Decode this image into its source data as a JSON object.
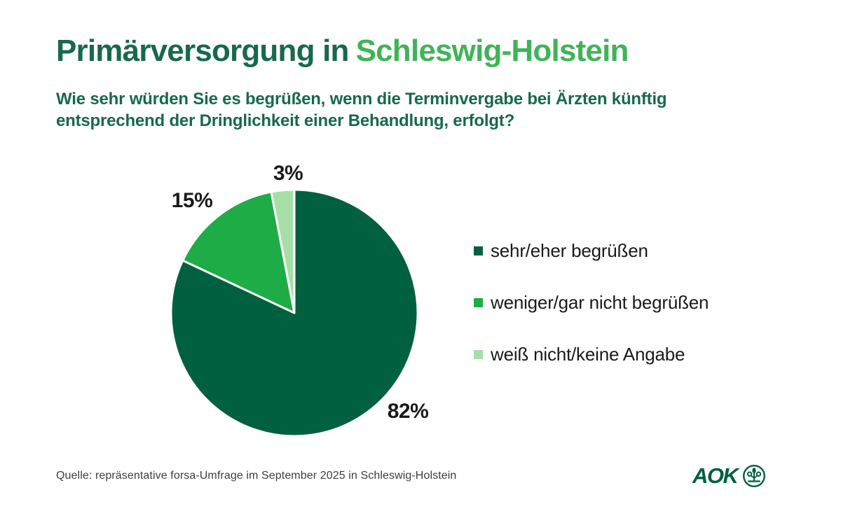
{
  "header": {
    "title_prefix": "Primärversorgung in",
    "title_accent": "Schleswig-Holstein",
    "subtitle_line1": "Wie sehr würden Sie es begrüßen, wenn die Terminvergabe bei Ärzten künftig",
    "subtitle_line2": "entsprechend der Dringlichkeit einer Behandlung, erfolgt?"
  },
  "chart_data": {
    "type": "pie",
    "title": "Primärversorgung in Schleswig-Holstein",
    "question": "Wie sehr würden Sie es begrüßen, wenn die Terminvergabe bei Ärzten künftig entsprechend der Dringlichkeit einer Behandlung, erfolgt?",
    "unit": "percent",
    "start_angle_deg": 0,
    "direction": "clockwise",
    "legend_position": "right",
    "slice_separator_color": "#FFFFFF",
    "slices": [
      {
        "label": "sehr/eher begrüßen",
        "value": 82,
        "display": "82%",
        "color": "#00603F"
      },
      {
        "label": "weniger/gar nicht begrüßen",
        "value": 15,
        "display": "15%",
        "color": "#1EAC46"
      },
      {
        "label": "weiß nicht/keine Angabe",
        "value": 3,
        "display": "3%",
        "color": "#A6DFA6"
      }
    ]
  },
  "footer": {
    "source": "Quelle: repräsentative forsa-Umfrage im September 2025 in Schleswig-Holstein",
    "logo_text": "AOK",
    "logo_emblem": "aok-tree-of-life-icon"
  },
  "colors": {
    "background": "#FFFFFF",
    "title_primary": "#17694B",
    "title_accent": "#3FB457",
    "label_text": "#1A1A1A",
    "source_text": "#3D3D3D",
    "logo_green": "#00603F"
  }
}
